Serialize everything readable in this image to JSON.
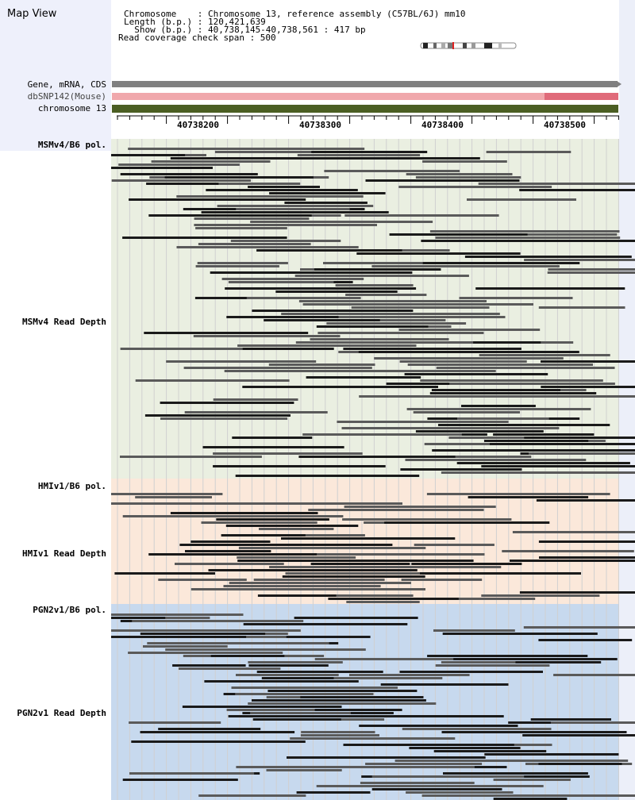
{
  "app": {
    "title": "Map View"
  },
  "info": {
    "chromosome_line": "Chromosome    : Chromosome 13, reference assembly (C57BL/6J) mm10",
    "length_line": "Length (b.p.) : 120,421,639",
    "show_line": "  Show (b.p.) : 40,738,145-40,738,561 : 417 bp",
    "span_line": "Read coverage check span : 500"
  },
  "tracks": {
    "gene_label": "Gene, mRNA, CDS",
    "snp_label": "dbSNP142(Mouse)",
    "chrom_label": "chromosome 13"
  },
  "ruler": {
    "ticks": [
      "40738200",
      "40738300",
      "40738400",
      "40738500"
    ]
  },
  "samples": [
    {
      "pol_label": "MSMv4/B6 pol.",
      "depth_label": "MSMv4 Read Depth",
      "color": "#eaefe1"
    },
    {
      "pol_label": "HMIv1/B6 pol.",
      "depth_label": "HMIv1 Read Depth",
      "color": "#fbe8da"
    },
    {
      "pol_label": "PGN2v1/B6 pol.",
      "depth_label": "PGN2v1 Read Depth",
      "color": "#c7d9ee"
    }
  ],
  "colors": {
    "gene_bar": "#808080",
    "snp_bar": "#f0a8ac",
    "snp_highlight": "#e06b7a",
    "chrom_bar": "#4b5e23",
    "read_dark": "#1a1a1a",
    "read_mid": "#5a5a5a",
    "grid": "#d0d0d0"
  }
}
